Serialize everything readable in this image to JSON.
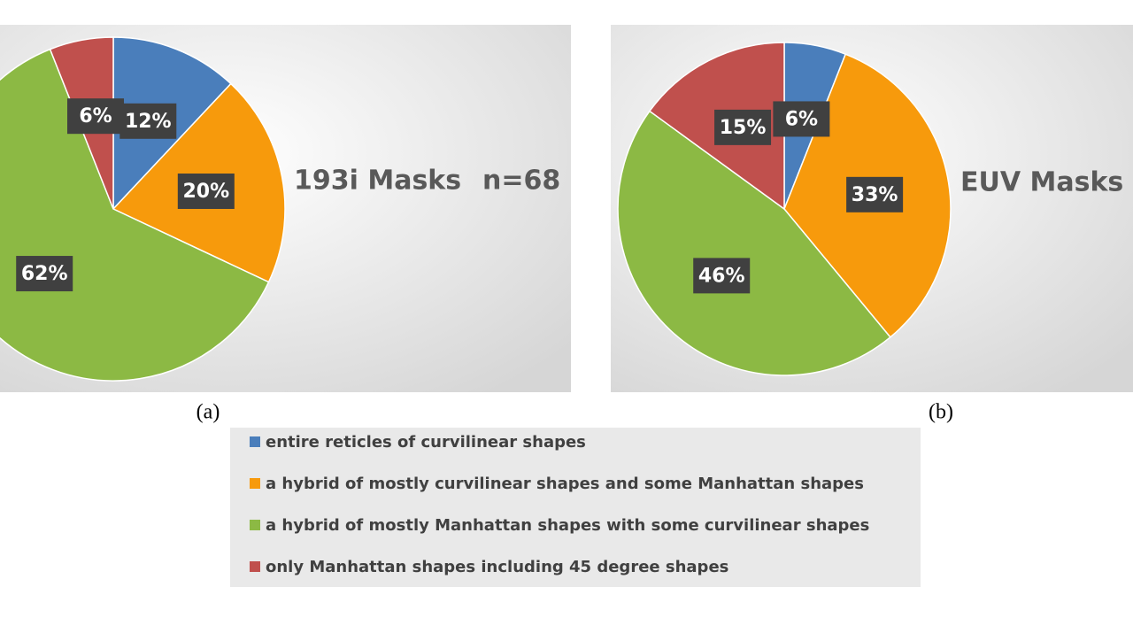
{
  "chart_data": [
    {
      "type": "pie",
      "title": "193i Masks",
      "annotation": "n=68",
      "caption": "(a)",
      "categories": [
        "entire reticles of curvilinear shapes",
        "a hybrid of mostly curvilinear shapes and some Manhattan shapes",
        "a hybrid of mostly Manhattan shapes with some curvilinear shapes",
        "only Manhattan shapes including 45 degree shapes"
      ],
      "colors": [
        "#4a7ebb",
        "#f79a0c",
        "#8cb944",
        "#c0504d"
      ],
      "values": [
        12,
        20,
        62,
        6
      ],
      "value_labels": [
        "12%",
        "20%",
        "62%",
        "6%"
      ]
    },
    {
      "type": "pie",
      "title": "EUV Masks",
      "caption": "(b)",
      "colors": [
        "#4a7ebb",
        "#f79a0c",
        "#8cb944",
        "#c0504d"
      ],
      "values": [
        6,
        33,
        46,
        15
      ],
      "value_labels": [
        "6%",
        "33%",
        "46%",
        "15%"
      ]
    }
  ]
}
